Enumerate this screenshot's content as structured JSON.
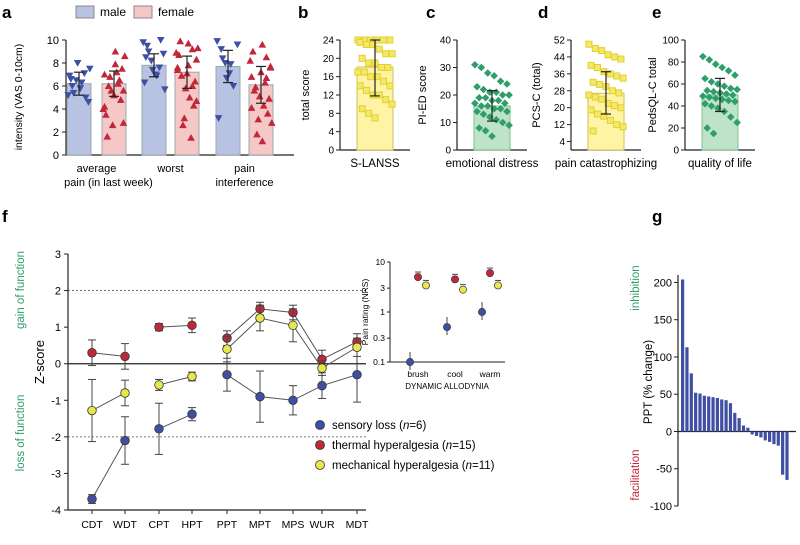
{
  "colors": {
    "blue": "#3F4FA3",
    "red": "#C0283A",
    "maleFill": "#B8C3E3",
    "femaleFill": "#F6C7C7",
    "yellowFill": "#FFF3A6",
    "yellow": "#E3D12A",
    "greenFill": "#BFE3C8",
    "green": "#2E9E6A",
    "text": "#222222",
    "dot": "#333333"
  },
  "panel_labels": {
    "a": "a",
    "b": "b",
    "c": "c",
    "d": "d",
    "e": "e",
    "f": "f",
    "g": "g"
  },
  "chart_data": [
    {
      "id": "a",
      "type": "bar",
      "ylabel": "intensity  (VAS 0-10cm)",
      "ylim": [
        0,
        10
      ],
      "yticks": [
        "0",
        "2",
        "4",
        "6",
        "8",
        "10"
      ],
      "legend": [
        {
          "name": "male",
          "color": "#B8C3E3"
        },
        {
          "name": "female",
          "color": "#F6C7C7"
        }
      ],
      "categories": [
        "average",
        "worst",
        "pain"
      ],
      "category_sublabels": [
        "pain (in last week)",
        "",
        "interference"
      ],
      "series": [
        {
          "name": "male",
          "values": [
            6.2,
            7.8,
            7.7
          ],
          "err": [
            1.0,
            1.0,
            1.4
          ]
        },
        {
          "name": "female",
          "values": [
            6.2,
            7.2,
            6.1
          ],
          "err": [
            1.1,
            1.4,
            1.6
          ]
        }
      ],
      "points": {
        "male": [
          [
            5.2,
            6.0,
            6.5,
            5.8,
            7.1,
            4.6,
            6.9,
            5.4,
            8.0,
            6.3,
            5.0,
            7.5,
            6.6
          ],
          [
            9.8,
            9.5,
            8.2,
            7.0,
            7.6,
            8.8,
            6.3,
            9.0,
            7.4,
            6.9,
            10.0,
            5.7,
            8.5
          ],
          [
            9.9,
            9.2,
            8.0,
            7.1,
            6.0,
            9.6,
            3.2,
            8.4,
            6.7,
            7.9
          ]
        ],
        "female": [
          [
            7.9,
            6.5,
            5.6,
            4.2,
            6.0,
            2.6,
            7.2,
            4.8,
            8.6,
            3.5,
            6.8,
            5.2,
            6.2,
            7.5,
            4.0,
            1.6,
            5.6,
            9.0,
            6.5,
            2.8,
            7.0
          ],
          [
            9.7,
            9.2,
            8.3,
            7.6,
            6.9,
            5.8,
            5.0,
            4.3,
            9.3,
            8.7,
            2.6,
            7.1,
            1.5,
            6.4,
            8.9,
            9.9,
            3.2,
            7.8,
            6.0,
            4.7,
            7.4
          ],
          [
            9.6,
            8.5,
            7.7,
            6.8,
            5.9,
            5.1,
            4.3,
            3.6,
            2.8,
            9.0,
            1.8,
            7.2,
            6.3,
            4.9,
            8.2,
            5.6,
            3.1,
            1.2,
            6.7,
            7.6,
            4.1
          ]
        ]
      }
    },
    {
      "id": "b",
      "type": "bar",
      "ylabel": "total score",
      "xlabel": "S-LANSS",
      "ylim": [
        0,
        24
      ],
      "yticks": [
        "0",
        "4",
        "8",
        "12",
        "16",
        "20",
        "24"
      ],
      "value": 18.1,
      "err_low": 6.3,
      "err_high": 5.9,
      "color": "yellow",
      "points": [
        24,
        24,
        24,
        24,
        24,
        24,
        23.5,
        23,
        23,
        22,
        21,
        21,
        20,
        19,
        19,
        18,
        18,
        17,
        17,
        16,
        16,
        15,
        14,
        14,
        13,
        12,
        12,
        11,
        10,
        9,
        8,
        7
      ]
    },
    {
      "id": "c",
      "type": "bar",
      "ylabel": "PI-ED score",
      "xlabel": "emotional distress",
      "ylim": [
        0,
        40
      ],
      "yticks": [
        "0",
        "10",
        "20",
        "30",
        "40"
      ],
      "value": 16.0,
      "err_low": 5.5,
      "err_high": 5.6,
      "color": "green",
      "points": [
        31,
        30,
        28,
        27,
        25,
        24,
        23,
        22,
        21,
        21,
        20,
        20,
        19,
        19,
        18,
        18,
        17,
        17,
        16,
        16,
        15,
        15,
        14,
        14,
        13,
        12,
        11,
        10,
        9,
        8,
        7,
        5
      ]
    },
    {
      "id": "d",
      "type": "bar",
      "ylabel": "PCS-C (total)",
      "xlabel": "pain catastrophizing",
      "ylim": [
        0,
        52
      ],
      "yticks": [
        "4",
        "12",
        "20",
        "28",
        "36",
        "44",
        "52"
      ],
      "value": 26.8,
      "err_low": 9.8,
      "err_high": 10.2,
      "color": "yellow",
      "points": [
        50,
        48,
        47,
        45,
        44,
        43,
        40,
        39,
        37,
        36,
        35,
        34,
        32,
        31,
        30,
        28,
        27,
        26,
        25,
        24,
        22,
        21,
        20,
        19,
        17,
        16,
        14,
        12,
        11,
        9
      ]
    },
    {
      "id": "e",
      "type": "bar",
      "ylabel": "PedsQL-C total",
      "xlabel": "quality of life",
      "ylim": [
        0,
        100
      ],
      "yticks": [
        "0",
        "20",
        "40",
        "60",
        "80",
        "100"
      ],
      "value": 50.1,
      "err_low": 15.1,
      "err_high": 15.0,
      "color": "green",
      "points": [
        85,
        82,
        78,
        75,
        72,
        68,
        65,
        62,
        60,
        58,
        56,
        55,
        54,
        53,
        52,
        51,
        50,
        49,
        48,
        47,
        46,
        45,
        44,
        42,
        40,
        38,
        35,
        30,
        25,
        20,
        15
      ]
    },
    {
      "id": "f",
      "type": "line",
      "ylabel": "Z-score",
      "ylim": [
        -4,
        3
      ],
      "yticks": [
        "-4",
        "-3",
        "-2",
        "-1",
        "0",
        "1",
        "2",
        "3"
      ],
      "annotations": [
        "gain of function",
        "loss of function"
      ],
      "categories": [
        "CDT",
        "WDT",
        "CPT",
        "HPT",
        "PPT",
        "MPT",
        "MPS",
        "WUR",
        "MDT"
      ],
      "series": [
        {
          "name": "sensory loss (n=6)",
          "label": "sensory loss (",
          "n": "n",
          "nval": "=6)",
          "color": "blue",
          "values": [
            -3.7,
            -2.1,
            -1.78,
            -1.38,
            -0.3,
            -0.9,
            -1.0,
            -0.6,
            -0.3
          ],
          "err": [
            0.12,
            0.65,
            0.7,
            0.18,
            0.45,
            0.7,
            0.4,
            0.35,
            0.75
          ]
        },
        {
          "name": "thermal hyperalgesia (n=15)",
          "label": "thermal hyperalgesia (",
          "n": "n",
          "nval": "=15)",
          "color": "red",
          "values": [
            0.3,
            0.2,
            1.0,
            1.05,
            0.7,
            1.5,
            1.4,
            0.12,
            0.6
          ],
          "err": [
            0.35,
            0.35,
            0.1,
            0.2,
            0.2,
            0.18,
            0.2,
            0.25,
            0.22
          ]
        },
        {
          "name": "mechanical hyperalgesia (n=11)",
          "label": "mechanical hyperalgesia (",
          "n": "n",
          "nval": "=11)",
          "color": "yellow",
          "values": [
            -1.28,
            -0.8,
            -0.58,
            -0.35,
            0.4,
            1.25,
            1.05,
            -0.12,
            0.45
          ],
          "err": [
            0.85,
            0.35,
            0.15,
            0.12,
            0.35,
            0.35,
            0.45,
            0.2,
            0.25
          ]
        }
      ],
      "inset": {
        "ylabel": "Pain rating (NRS)",
        "xlabel": "DYNAMIC ALLODYNIA",
        "categories": [
          "brush",
          "cool",
          "warm"
        ],
        "yticks": [
          "0.1",
          "0.3",
          "1",
          "3",
          "10"
        ],
        "series": [
          {
            "color": "blue",
            "values": [
              0.1,
              0.5,
              1.0
            ]
          },
          {
            "color": "red",
            "values": [
              5.0,
              4.5,
              6.0
            ]
          },
          {
            "color": "yellow",
            "values": [
              3.4,
              2.8,
              3.4
            ]
          }
        ]
      }
    },
    {
      "id": "g",
      "type": "bar",
      "ylabel": "PPT (% change)",
      "ylim": [
        -100,
        200
      ],
      "yticks": [
        "-100",
        "-50",
        "0",
        "50",
        "100",
        "150",
        "200"
      ],
      "annotations": [
        "inhibition",
        "facilitation"
      ],
      "values": [
        204,
        113,
        78,
        52,
        51,
        48,
        47,
        46,
        45,
        43,
        42,
        38,
        25,
        18,
        8,
        5,
        -4,
        -6,
        -8,
        -12,
        -14,
        -17,
        -19,
        -58,
        -65
      ]
    }
  ]
}
